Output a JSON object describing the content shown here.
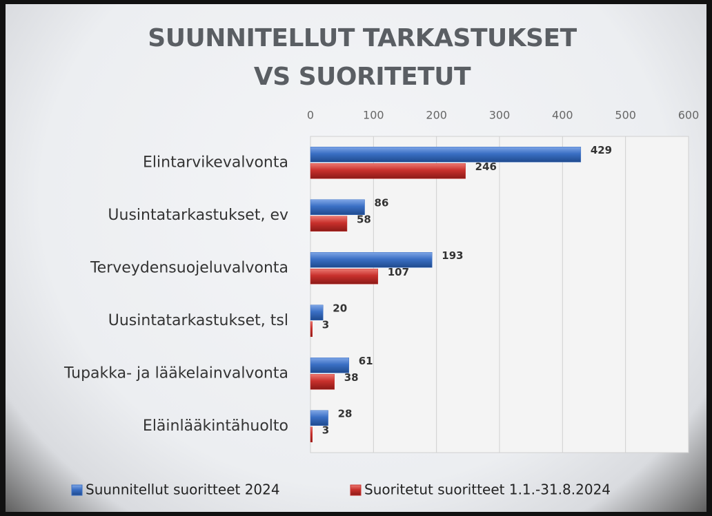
{
  "chart_data": {
    "type": "bar",
    "orientation": "horizontal",
    "title": "SUUNNITELLUT TARKASTUKSET VS SUORITETUT",
    "categories": [
      "Elintarvikevalvonta",
      "Uusintatarkastukset, ev",
      "Terveydensuojeluvalvonta",
      "Uusintatarkastukset, tsl",
      "Tupakka- ja lääkelainvalvonta",
      "Eläinlääkintähuolto"
    ],
    "series": [
      {
        "name": "Suunnitellut suoritteet 2024",
        "color": "#3a6fc4",
        "values": [
          429,
          86,
          193,
          20,
          61,
          28
        ]
      },
      {
        "name": "Suoritetut suoritteet 1.1.-31.8.2024",
        "color": "#c8302c",
        "values": [
          246,
          58,
          107,
          3,
          38,
          3
        ]
      }
    ],
    "xlim": [
      0,
      600
    ],
    "xticks": [
      0,
      100,
      200,
      300,
      400,
      500,
      600
    ],
    "grid": true,
    "legend": "bottom"
  }
}
